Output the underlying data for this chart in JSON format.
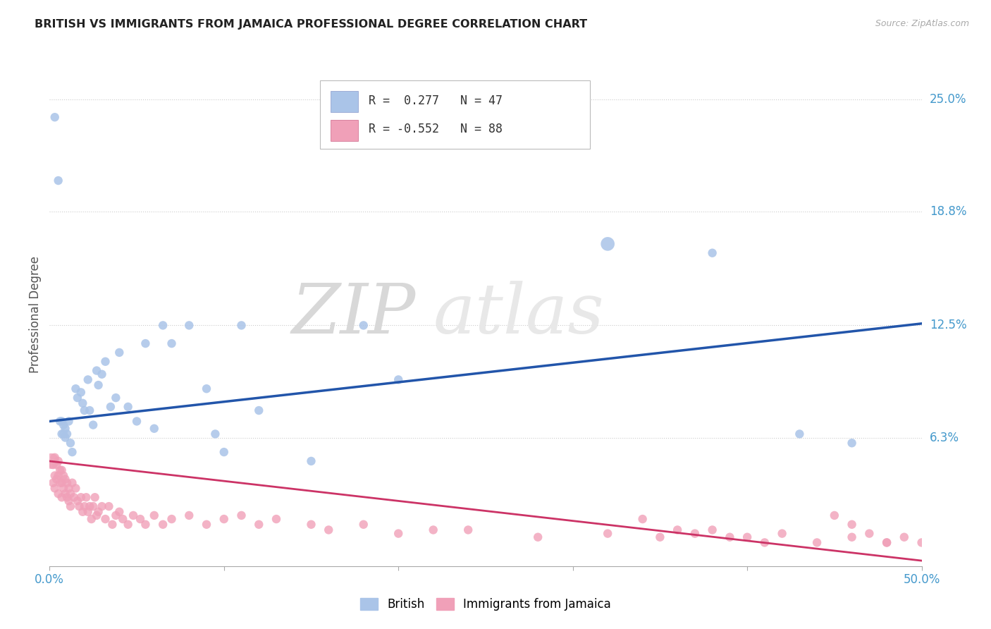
{
  "title": "BRITISH VS IMMIGRANTS FROM JAMAICA PROFESSIONAL DEGREE CORRELATION CHART",
  "source": "Source: ZipAtlas.com",
  "ylabel": "Professional Degree",
  "xlim": [
    0.0,
    0.5
  ],
  "ylim": [
    -0.008,
    0.27
  ],
  "british_R": 0.277,
  "british_N": 47,
  "jamaica_R": -0.552,
  "jamaica_N": 88,
  "british_color": "#aac4e8",
  "british_line_color": "#2255aa",
  "jamaica_color": "#f0a0b8",
  "jamaica_line_color": "#cc3366",
  "watermark_zip": "ZIP",
  "watermark_atlas": "atlas",
  "background_color": "#ffffff",
  "grid_color": "#cccccc",
  "ytick_vals": [
    0.0,
    0.063,
    0.125,
    0.188,
    0.25
  ],
  "ytick_labels": [
    "",
    "6.3%",
    "12.5%",
    "18.8%",
    "25.0%"
  ],
  "title_color": "#222222",
  "source_color": "#aaaaaa",
  "tick_color": "#4499cc",
  "british_x": [
    0.003,
    0.005,
    0.006,
    0.007,
    0.007,
    0.008,
    0.008,
    0.009,
    0.009,
    0.01,
    0.011,
    0.012,
    0.013,
    0.015,
    0.016,
    0.018,
    0.019,
    0.02,
    0.022,
    0.023,
    0.025,
    0.027,
    0.028,
    0.03,
    0.032,
    0.035,
    0.038,
    0.04,
    0.045,
    0.05,
    0.055,
    0.06,
    0.065,
    0.07,
    0.08,
    0.09,
    0.095,
    0.1,
    0.11,
    0.12,
    0.15,
    0.18,
    0.2,
    0.32,
    0.38,
    0.43,
    0.46
  ],
  "british_y": [
    0.24,
    0.205,
    0.072,
    0.065,
    0.072,
    0.065,
    0.07,
    0.063,
    0.068,
    0.065,
    0.072,
    0.06,
    0.055,
    0.09,
    0.085,
    0.088,
    0.082,
    0.078,
    0.095,
    0.078,
    0.07,
    0.1,
    0.092,
    0.098,
    0.105,
    0.08,
    0.085,
    0.11,
    0.08,
    0.072,
    0.115,
    0.068,
    0.125,
    0.115,
    0.125,
    0.09,
    0.065,
    0.055,
    0.125,
    0.078,
    0.05,
    0.125,
    0.095,
    0.17,
    0.165,
    0.065,
    0.06
  ],
  "british_sizes": [
    80,
    80,
    80,
    80,
    80,
    80,
    80,
    80,
    80,
    80,
    80,
    80,
    80,
    80,
    80,
    80,
    80,
    80,
    80,
    80,
    80,
    80,
    80,
    80,
    80,
    80,
    80,
    80,
    80,
    80,
    80,
    80,
    80,
    80,
    80,
    80,
    80,
    80,
    80,
    80,
    80,
    80,
    80,
    200,
    80,
    80,
    80
  ],
  "jamaica_x": [
    0.001,
    0.002,
    0.002,
    0.003,
    0.003,
    0.003,
    0.004,
    0.004,
    0.005,
    0.005,
    0.005,
    0.006,
    0.006,
    0.007,
    0.007,
    0.007,
    0.008,
    0.008,
    0.009,
    0.009,
    0.01,
    0.01,
    0.011,
    0.011,
    0.012,
    0.012,
    0.013,
    0.014,
    0.015,
    0.016,
    0.017,
    0.018,
    0.019,
    0.02,
    0.021,
    0.022,
    0.023,
    0.024,
    0.025,
    0.026,
    0.027,
    0.028,
    0.03,
    0.032,
    0.034,
    0.036,
    0.038,
    0.04,
    0.042,
    0.045,
    0.048,
    0.052,
    0.055,
    0.06,
    0.065,
    0.07,
    0.08,
    0.09,
    0.1,
    0.11,
    0.12,
    0.13,
    0.15,
    0.16,
    0.18,
    0.2,
    0.22,
    0.24,
    0.28,
    0.32,
    0.35,
    0.38,
    0.4,
    0.42,
    0.44,
    0.46,
    0.48,
    0.49,
    0.5,
    0.45,
    0.46,
    0.47,
    0.48,
    0.34,
    0.36,
    0.37,
    0.39,
    0.41
  ],
  "jamaica_y": [
    0.05,
    0.048,
    0.038,
    0.052,
    0.042,
    0.035,
    0.048,
    0.04,
    0.05,
    0.042,
    0.032,
    0.045,
    0.038,
    0.045,
    0.038,
    0.03,
    0.042,
    0.035,
    0.04,
    0.032,
    0.038,
    0.03,
    0.035,
    0.028,
    0.032,
    0.025,
    0.038,
    0.03,
    0.035,
    0.028,
    0.025,
    0.03,
    0.022,
    0.025,
    0.03,
    0.022,
    0.025,
    0.018,
    0.025,
    0.03,
    0.02,
    0.022,
    0.025,
    0.018,
    0.025,
    0.015,
    0.02,
    0.022,
    0.018,
    0.015,
    0.02,
    0.018,
    0.015,
    0.02,
    0.015,
    0.018,
    0.02,
    0.015,
    0.018,
    0.02,
    0.015,
    0.018,
    0.015,
    0.012,
    0.015,
    0.01,
    0.012,
    0.012,
    0.008,
    0.01,
    0.008,
    0.012,
    0.008,
    0.01,
    0.005,
    0.008,
    0.005,
    0.008,
    0.005,
    0.02,
    0.015,
    0.01,
    0.005,
    0.018,
    0.012,
    0.01,
    0.008,
    0.005
  ],
  "jamaica_sizes": [
    250,
    80,
    80,
    80,
    80,
    80,
    80,
    80,
    80,
    80,
    80,
    80,
    80,
    80,
    80,
    80,
    80,
    80,
    80,
    80,
    80,
    80,
    80,
    80,
    80,
    80,
    80,
    80,
    80,
    80,
    80,
    80,
    80,
    80,
    80,
    80,
    80,
    80,
    80,
    80,
    80,
    80,
    80,
    80,
    80,
    80,
    80,
    80,
    80,
    80,
    80,
    80,
    80,
    80,
    80,
    80,
    80,
    80,
    80,
    80,
    80,
    80,
    80,
    80,
    80,
    80,
    80,
    80,
    80,
    80,
    80,
    80,
    80,
    80,
    80,
    80,
    80,
    80,
    80,
    80,
    80,
    80,
    80,
    80,
    80,
    80,
    80,
    80
  ],
  "british_line_x0": 0.0,
  "british_line_y0": 0.072,
  "british_line_x1": 0.5,
  "british_line_y1": 0.126,
  "jamaica_line_x0": 0.0,
  "jamaica_line_y0": 0.05,
  "jamaica_line_x1": 0.5,
  "jamaica_line_y1": -0.005
}
